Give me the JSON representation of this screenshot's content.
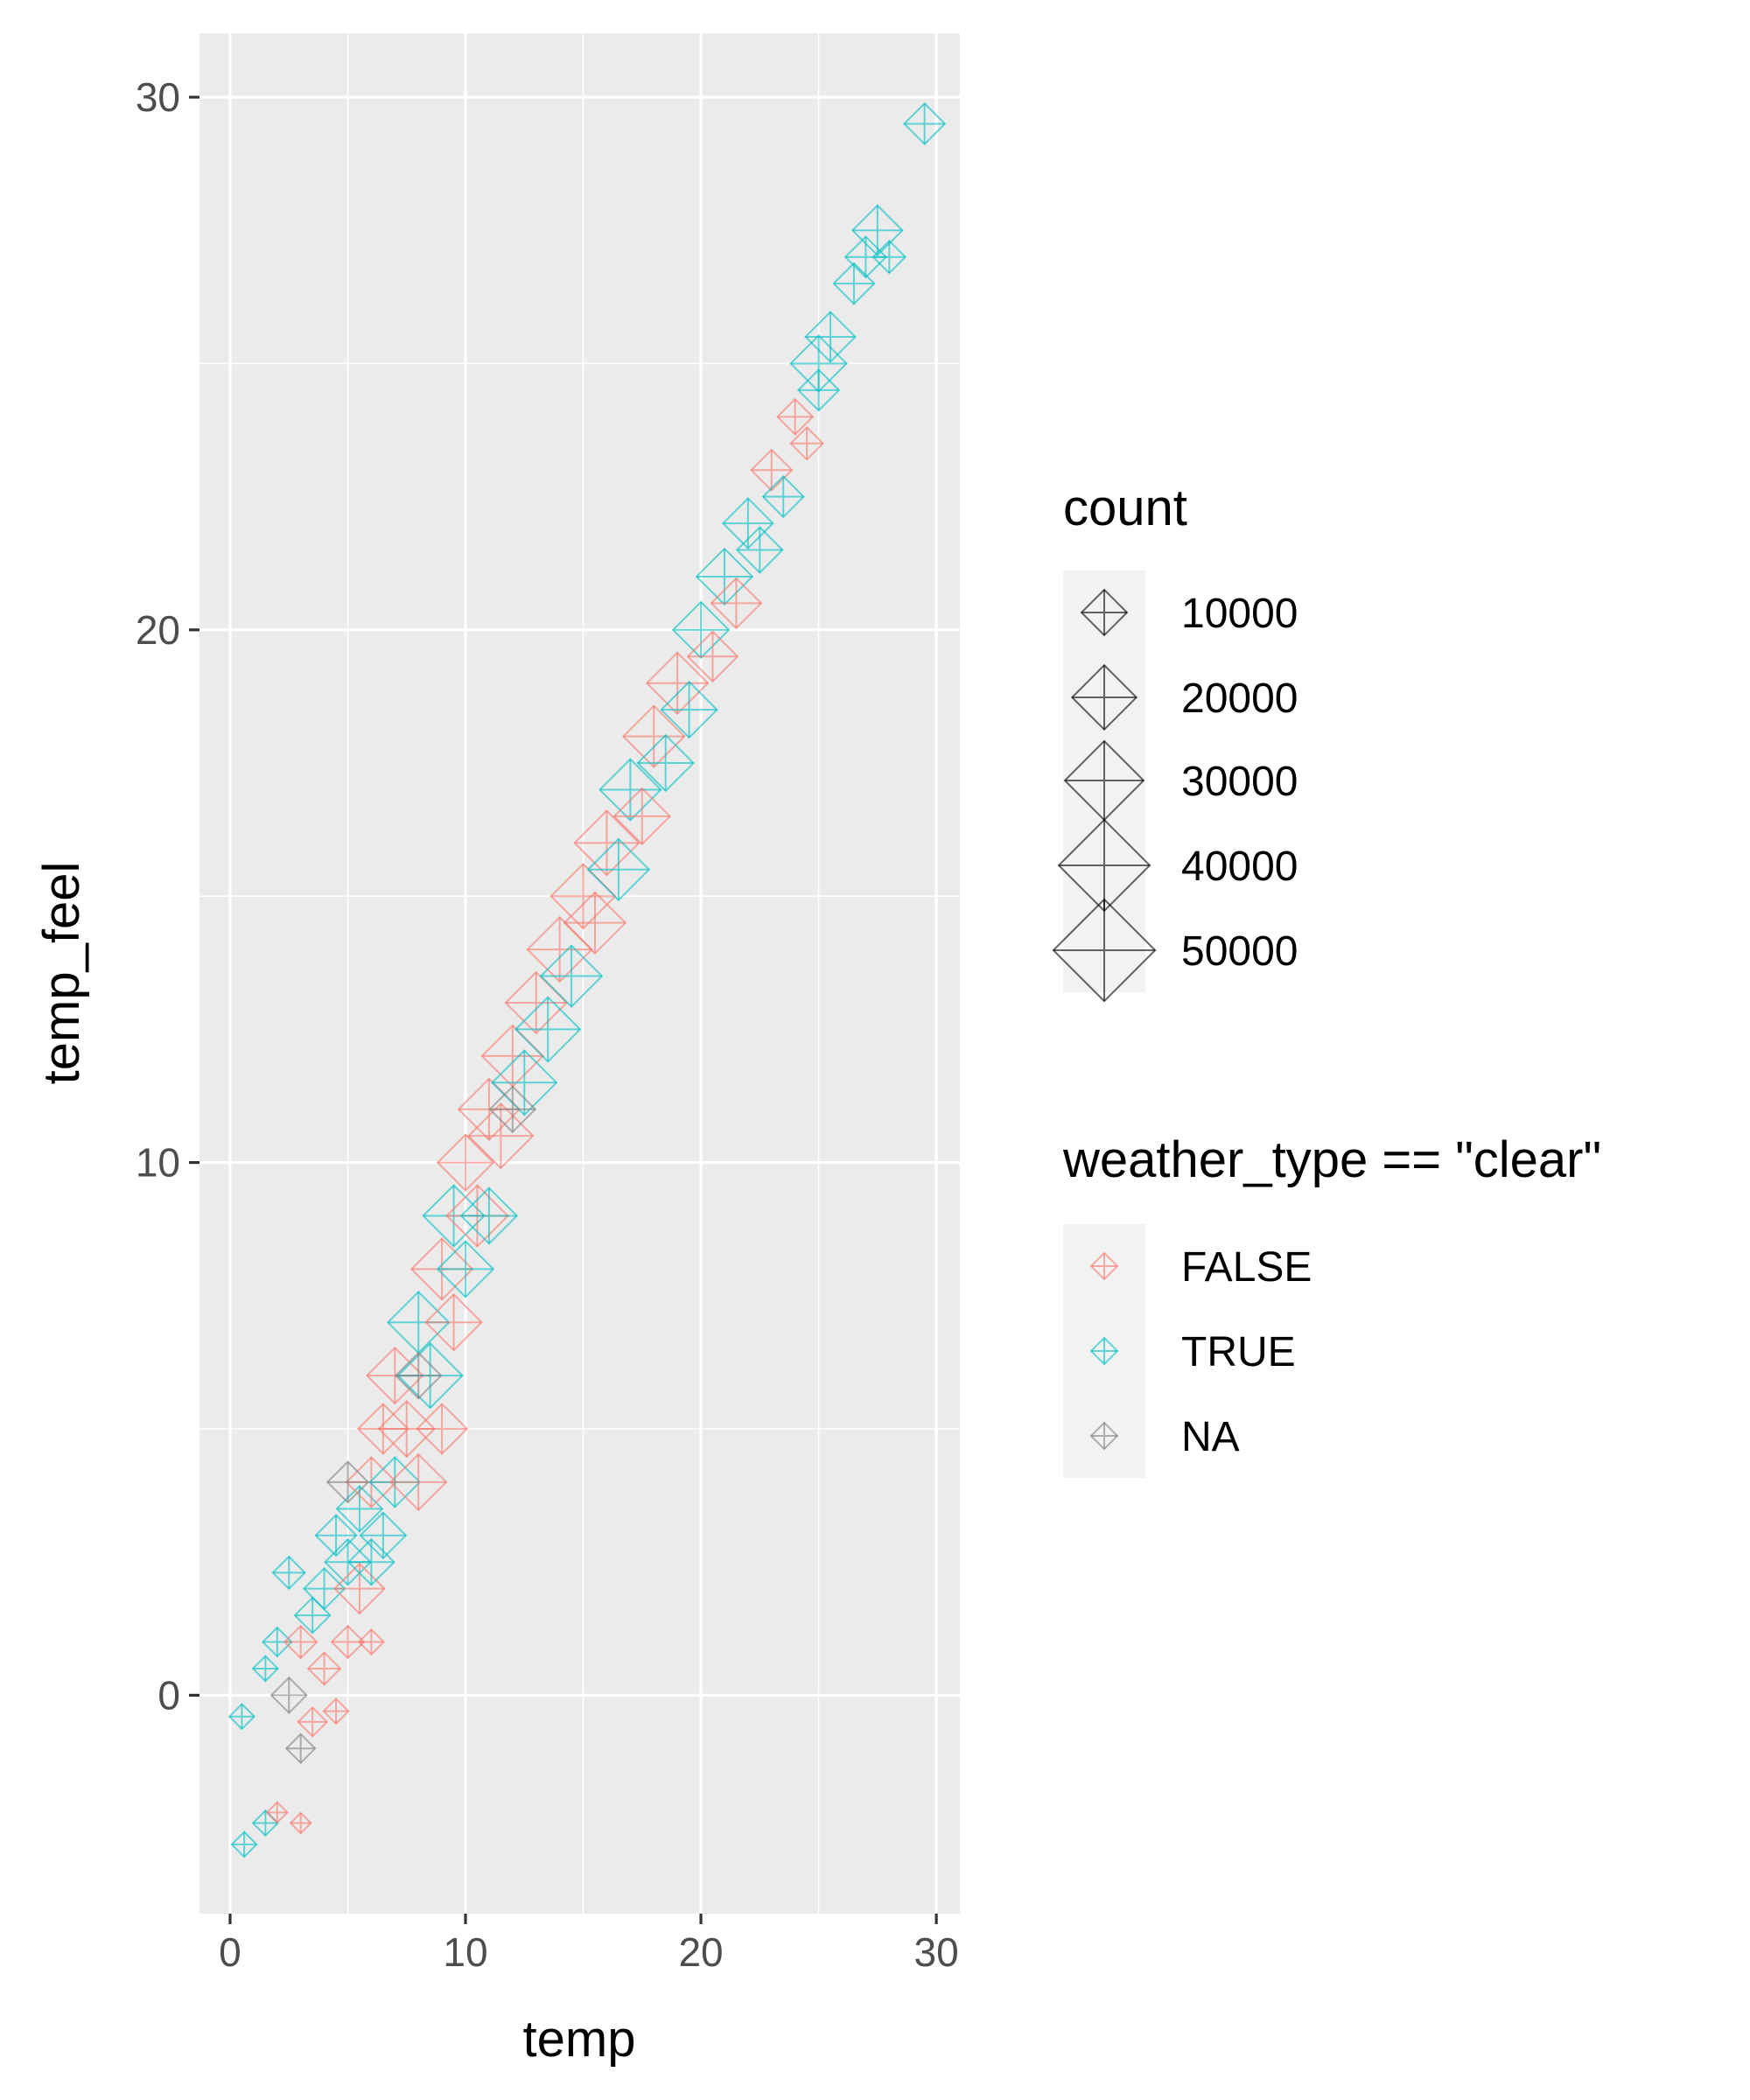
{
  "chart_data": {
    "type": "scatter",
    "xlabel": "temp",
    "ylabel": "temp_feel",
    "xlim": [
      -1.3,
      31
    ],
    "ylim": [
      -4.1,
      31.2
    ],
    "x_ticks": [
      0,
      10,
      20,
      30
    ],
    "y_ticks": [
      0,
      10,
      20,
      30
    ],
    "x_tick_labels": [
      "0",
      "10",
      "20",
      "30"
    ],
    "y_tick_labels": [
      "0",
      "10",
      "20",
      "30"
    ],
    "grid": true,
    "legend_placement": "right",
    "size_legend": {
      "title": "count",
      "values": [
        10000,
        20000,
        30000,
        40000,
        50000
      ],
      "labels": [
        "10000",
        "20000",
        "30000",
        "40000",
        "50000"
      ]
    },
    "color_legend": {
      "title": "weather_type == \"clear\"",
      "labels": [
        "FALSE",
        "TRUE",
        "NA"
      ],
      "colors": [
        "#F8766D",
        "#00BFC4",
        "#7F7F7F"
      ]
    },
    "points_format": [
      "temp",
      "temp_feel",
      "count",
      "group_index"
    ],
    "points": [
      [
        0.5,
        -0.4,
        3000,
        1
      ],
      [
        0.6,
        -2.8,
        3000,
        1
      ],
      [
        1.5,
        -2.4,
        3000,
        1
      ],
      [
        2,
        -2.2,
        2000,
        0
      ],
      [
        3,
        -2.4,
        2000,
        0
      ],
      [
        1.5,
        0.5,
        3000,
        1
      ],
      [
        2,
        1,
        4000,
        1
      ],
      [
        2.5,
        2.3,
        5000,
        1
      ],
      [
        2.5,
        0,
        6000,
        2
      ],
      [
        3,
        1,
        5000,
        0
      ],
      [
        3,
        -1,
        4000,
        2
      ],
      [
        3.5,
        -0.5,
        4000,
        0
      ],
      [
        3.5,
        1.5,
        6000,
        1
      ],
      [
        4,
        0.5,
        5000,
        0
      ],
      [
        4,
        2,
        8000,
        1
      ],
      [
        4.5,
        3,
        8000,
        1
      ],
      [
        4.5,
        -0.3,
        3000,
        0
      ],
      [
        5,
        1,
        5000,
        0
      ],
      [
        5,
        2.5,
        10000,
        1
      ],
      [
        5.5,
        3.5,
        10000,
        1
      ],
      [
        5.5,
        2,
        12000,
        0
      ],
      [
        6,
        4,
        12000,
        0
      ],
      [
        6,
        2.5,
        10000,
        1
      ],
      [
        6.5,
        5,
        12000,
        0
      ],
      [
        6.5,
        3,
        10000,
        1
      ],
      [
        6,
        1,
        3000,
        0
      ],
      [
        7,
        6,
        15000,
        0
      ],
      [
        7,
        4,
        12000,
        1
      ],
      [
        7.5,
        5,
        15000,
        0
      ],
      [
        8,
        7,
        18000,
        1
      ],
      [
        8,
        4,
        15000,
        0
      ],
      [
        8.5,
        6,
        20000,
        1
      ],
      [
        9,
        8,
        18000,
        0
      ],
      [
        9,
        5,
        12000,
        0
      ],
      [
        9.5,
        9,
        18000,
        1
      ],
      [
        9.5,
        7,
        15000,
        0
      ],
      [
        10,
        10,
        15000,
        0
      ],
      [
        10,
        8,
        15000,
        1
      ],
      [
        10.5,
        9,
        18000,
        0
      ],
      [
        11,
        11,
        18000,
        0
      ],
      [
        11,
        9,
        15000,
        1
      ],
      [
        11.5,
        10.5,
        20000,
        0
      ],
      [
        12,
        12,
        18000,
        0
      ],
      [
        12.5,
        11.5,
        20000,
        1
      ],
      [
        13,
        13,
        18000,
        0
      ],
      [
        13.5,
        12.5,
        20000,
        1
      ],
      [
        14,
        14,
        20000,
        0
      ],
      [
        14.5,
        13.5,
        18000,
        1
      ],
      [
        15,
        15,
        20000,
        0
      ],
      [
        15.5,
        14.5,
        18000,
        0
      ],
      [
        16,
        16,
        20000,
        0
      ],
      [
        16.5,
        15.5,
        18000,
        1
      ],
      [
        17,
        17,
        18000,
        1
      ],
      [
        17.5,
        16.5,
        15000,
        0
      ],
      [
        18,
        18,
        18000,
        0
      ],
      [
        18.5,
        17.5,
        15000,
        1
      ],
      [
        19,
        19,
        18000,
        0
      ],
      [
        19.5,
        18.5,
        15000,
        1
      ],
      [
        20,
        20,
        15000,
        1
      ],
      [
        20.5,
        19.5,
        12000,
        0
      ],
      [
        21,
        21,
        15000,
        1
      ],
      [
        21.5,
        20.5,
        12000,
        0
      ],
      [
        22,
        22,
        12000,
        1
      ],
      [
        22.5,
        21.5,
        10000,
        1
      ],
      [
        23,
        23,
        8000,
        0
      ],
      [
        23.5,
        22.5,
        8000,
        1
      ],
      [
        24,
        24,
        6000,
        0
      ],
      [
        24.5,
        23.5,
        5000,
        0
      ],
      [
        25,
        25,
        15000,
        1
      ],
      [
        25,
        24.5,
        8000,
        1
      ],
      [
        25.5,
        25.5,
        12000,
        1
      ],
      [
        26.5,
        26.5,
        8000,
        1
      ],
      [
        27,
        27,
        8000,
        1
      ],
      [
        27.5,
        27.5,
        12000,
        1
      ],
      [
        28,
        27,
        5000,
        1
      ],
      [
        29.5,
        29.5,
        8000,
        1
      ],
      [
        5,
        4,
        8000,
        2
      ],
      [
        8,
        6,
        10000,
        2
      ],
      [
        12,
        11,
        10000,
        2
      ]
    ]
  }
}
